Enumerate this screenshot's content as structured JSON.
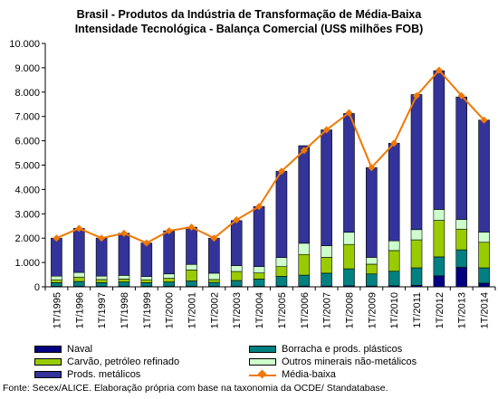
{
  "title": {
    "line1": "Brasil - Produtos da Indústria de Transformação de Média-Baixa",
    "line2": "Intensidade Tecnológica - Balança Comercial (US$ milhões FOB)"
  },
  "footnote": "Fonte: Secex/ALICE. Elaboração própria com base na taxonomia da OCDE/ Standatabase.",
  "chart_data": {
    "type": "bar",
    "stacked": true,
    "categories": [
      "1T/1995",
      "1T/1996",
      "1T/1997",
      "1T/1998",
      "1T/1999",
      "1T/2000",
      "1T/2001",
      "1T/2002",
      "1T/2003",
      "1T/2004",
      "1T/2005",
      "1T/2006",
      "1T/2007",
      "1T/2008",
      "1T/2009",
      "1T/2010",
      "1T/2011",
      "1T/2012",
      "1T/2013",
      "1T/2014"
    ],
    "ylim": [
      0,
      10000
    ],
    "yticks": [
      0,
      1000,
      2000,
      3000,
      4000,
      5000,
      6000,
      7000,
      8000,
      9000,
      10000
    ],
    "ytick_labels": [
      "0",
      "1.000",
      "2.000",
      "3.000",
      "4.000",
      "5.000",
      "6.000",
      "7.000",
      "8.000",
      "9.000",
      "10.000"
    ],
    "grid": false,
    "legend_position": "bottom",
    "series": [
      {
        "name": "Naval",
        "color": "#000080",
        "kind": "bar",
        "values": [
          20,
          20,
          20,
          20,
          20,
          20,
          20,
          20,
          20,
          20,
          30,
          30,
          30,
          40,
          30,
          40,
          60,
          450,
          800,
          150
        ]
      },
      {
        "name": "Borracha e prods. plásticos",
        "color": "#008080",
        "kind": "bar",
        "values": [
          150,
          200,
          150,
          180,
          150,
          180,
          220,
          160,
          240,
          300,
          400,
          450,
          530,
          700,
          500,
          600,
          720,
          780,
          720,
          630
        ]
      },
      {
        "name": "Carvão, petróleo refinado",
        "color": "#99cc00",
        "kind": "bar",
        "values": [
          120,
          180,
          130,
          120,
          120,
          150,
          450,
          120,
          370,
          250,
          400,
          850,
          650,
          1000,
          400,
          850,
          1150,
          1500,
          850,
          1050
        ]
      },
      {
        "name": "Outros minerais não-metálicos",
        "color": "#ccffcc",
        "kind": "bar",
        "values": [
          150,
          190,
          140,
          150,
          130,
          180,
          230,
          260,
          240,
          260,
          370,
          460,
          480,
          500,
          280,
          400,
          420,
          450,
          400,
          420
        ]
      },
      {
        "name": "Prods. metálicos",
        "color": "#333399",
        "kind": "bar",
        "values": [
          1560,
          1810,
          1560,
          1730,
          1380,
          1770,
          1530,
          1440,
          1850,
          2470,
          3550,
          4010,
          4760,
          4880,
          3690,
          4010,
          5550,
          5700,
          5030,
          4600
        ]
      },
      {
        "name": "Média-baixa",
        "color": "#f07800",
        "kind": "line",
        "values": [
          2000,
          2400,
          2000,
          2200,
          1800,
          2300,
          2450,
          2000,
          2750,
          3300,
          4750,
          5600,
          6450,
          7150,
          4900,
          5900,
          7850,
          8900,
          7850,
          6850
        ]
      }
    ]
  }
}
